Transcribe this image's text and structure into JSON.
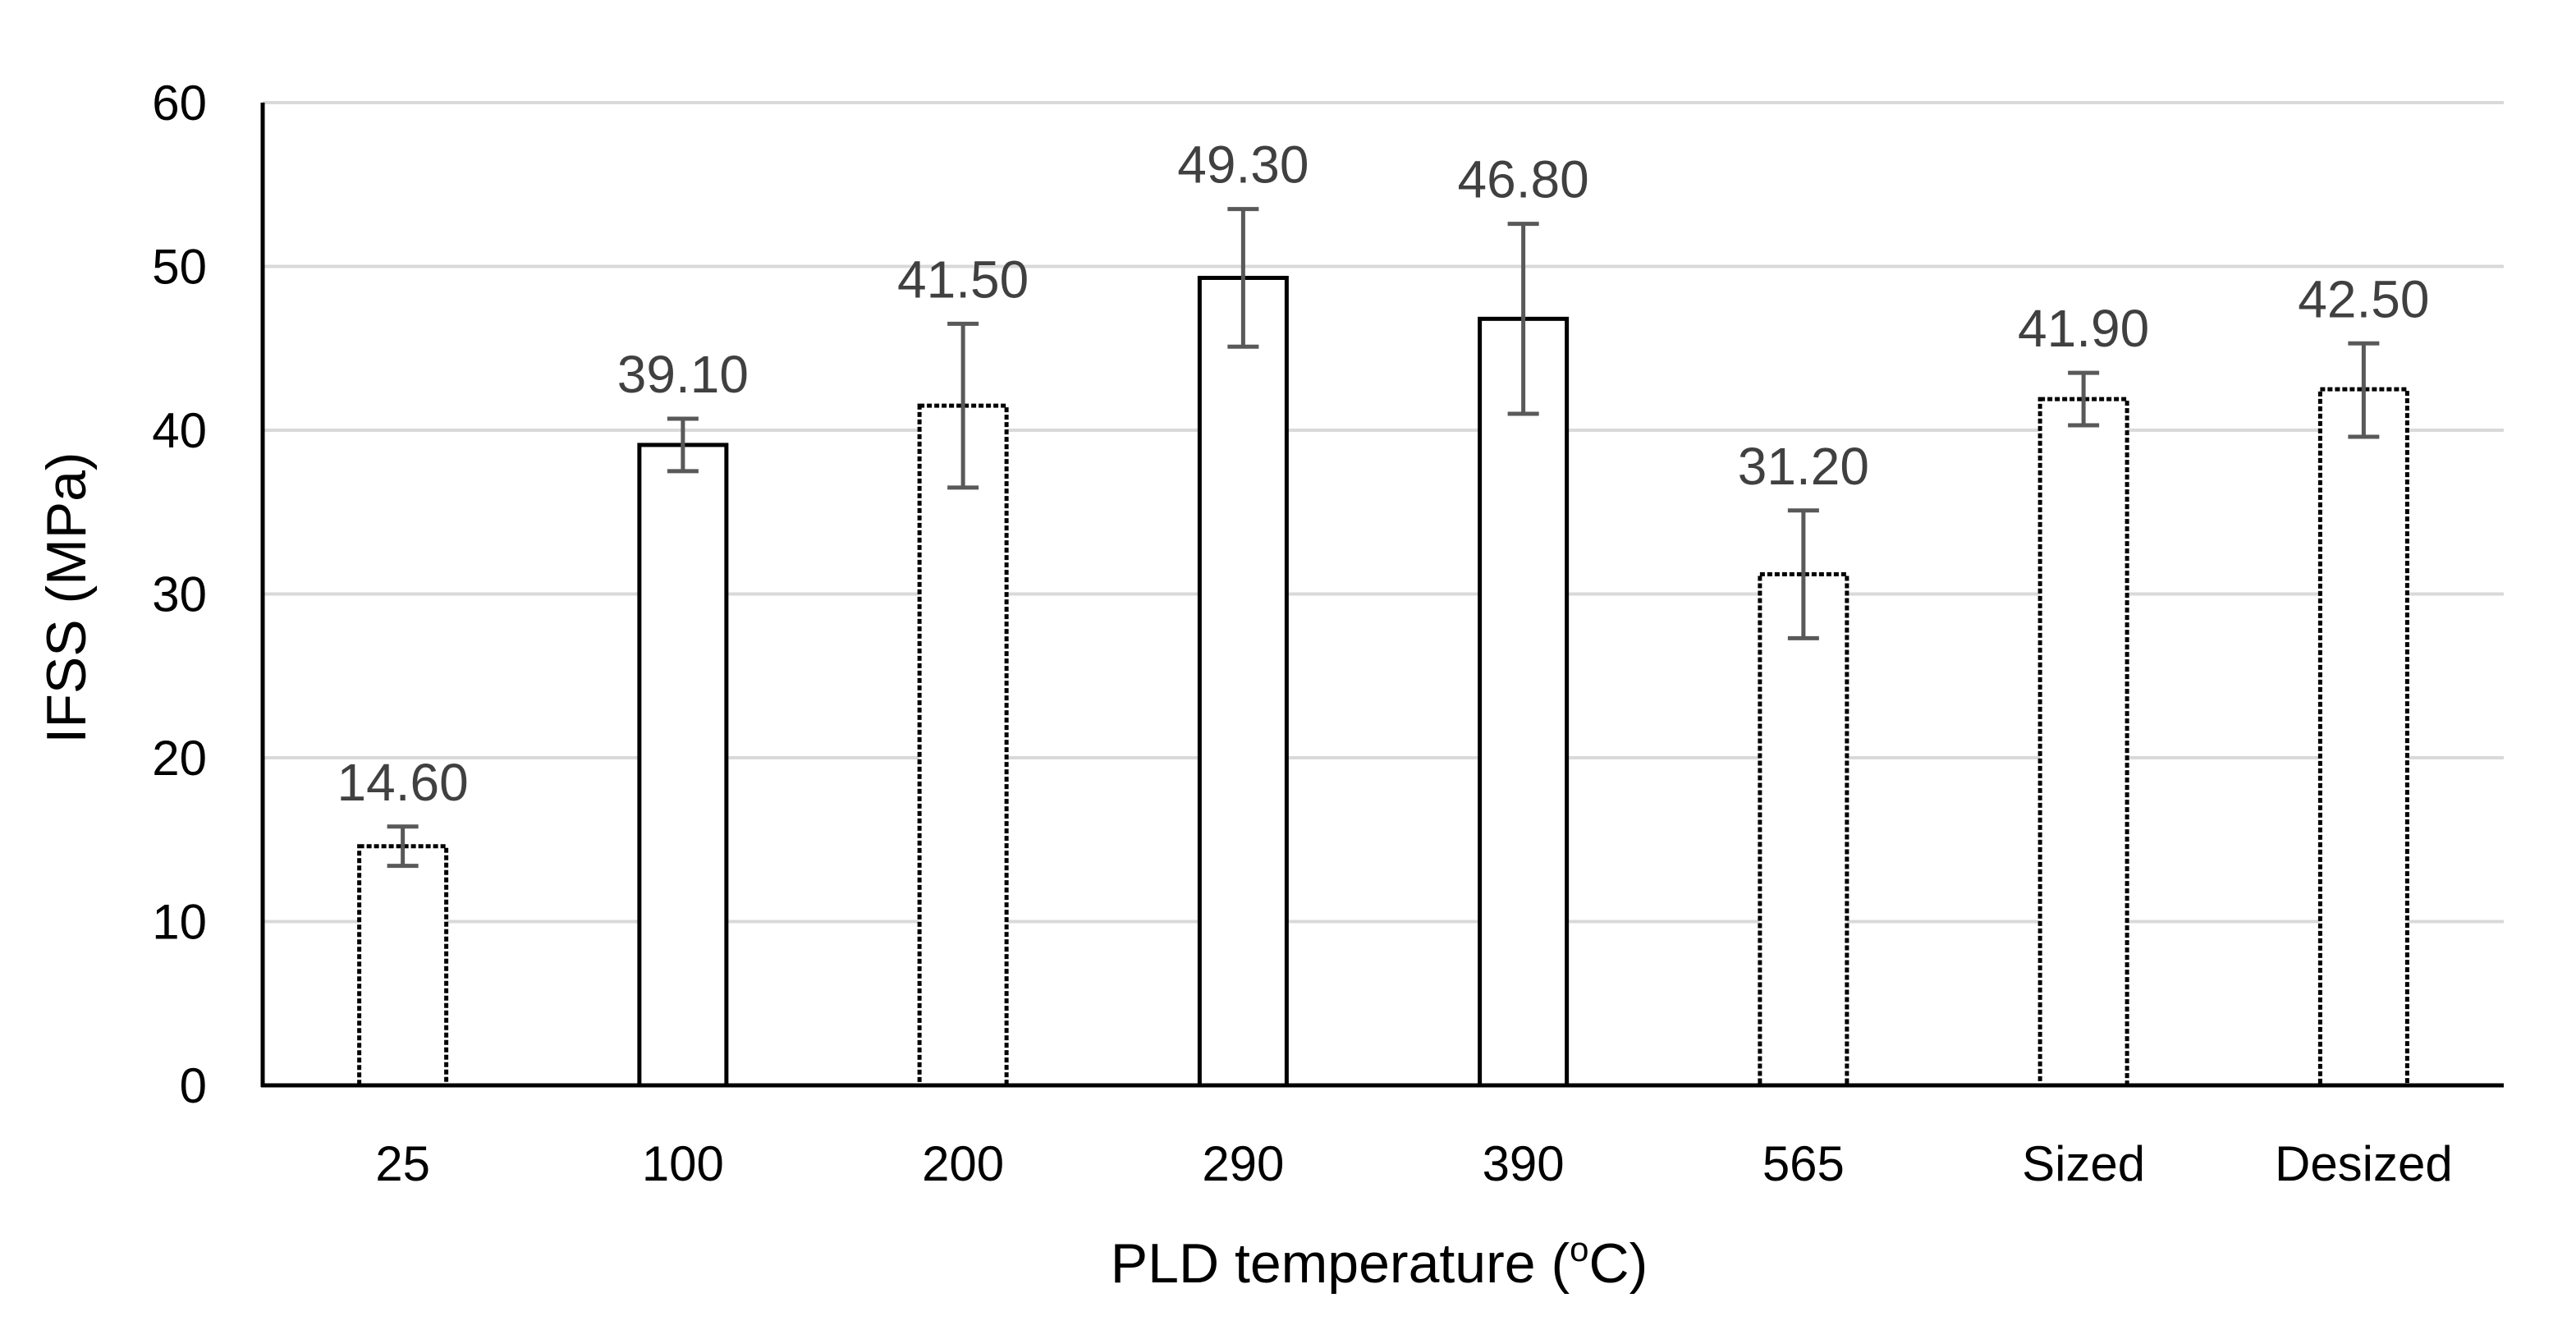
{
  "chart_data": {
    "type": "bar",
    "title": "",
    "xlabel": "PLD temperature (",
    "xlabel_superscript": "o",
    "xlabel_suffix": "C)",
    "ylabel": "IFSS (MPa)",
    "ylim": [
      0,
      60
    ],
    "yticks": [
      0,
      10,
      20,
      30,
      40,
      50,
      60
    ],
    "ytick_labels": [
      "0",
      "10",
      "20",
      "30",
      "40",
      "50",
      "60"
    ],
    "grid": true,
    "legend": "none",
    "categories": [
      "25",
      "100",
      "200",
      "290",
      "390",
      "565",
      "Sized",
      "Desized"
    ],
    "values": [
      14.6,
      39.1,
      41.5,
      49.3,
      46.8,
      31.2,
      41.9,
      42.5
    ],
    "data_labels": [
      "14.60",
      "39.10",
      "41.50",
      "49.30",
      "46.80",
      "31.20",
      "41.90",
      "42.50"
    ],
    "error_low": [
      13.4,
      37.5,
      36.5,
      45.1,
      41.0,
      27.3,
      40.3,
      39.6
    ],
    "error_high": [
      15.8,
      40.7,
      46.5,
      53.5,
      52.6,
      35.1,
      43.5,
      45.3
    ],
    "bar_border_style": [
      "dashed",
      "solid",
      "dashed",
      "solid",
      "solid",
      "dashed",
      "dashed",
      "dashed"
    ],
    "colors": {
      "bar_fill": "#ffffff",
      "bar_stroke": "#000000",
      "grid": "#d9d9d9",
      "axis": "#000000",
      "error_bar": "#595959",
      "data_label": "#404040"
    }
  }
}
